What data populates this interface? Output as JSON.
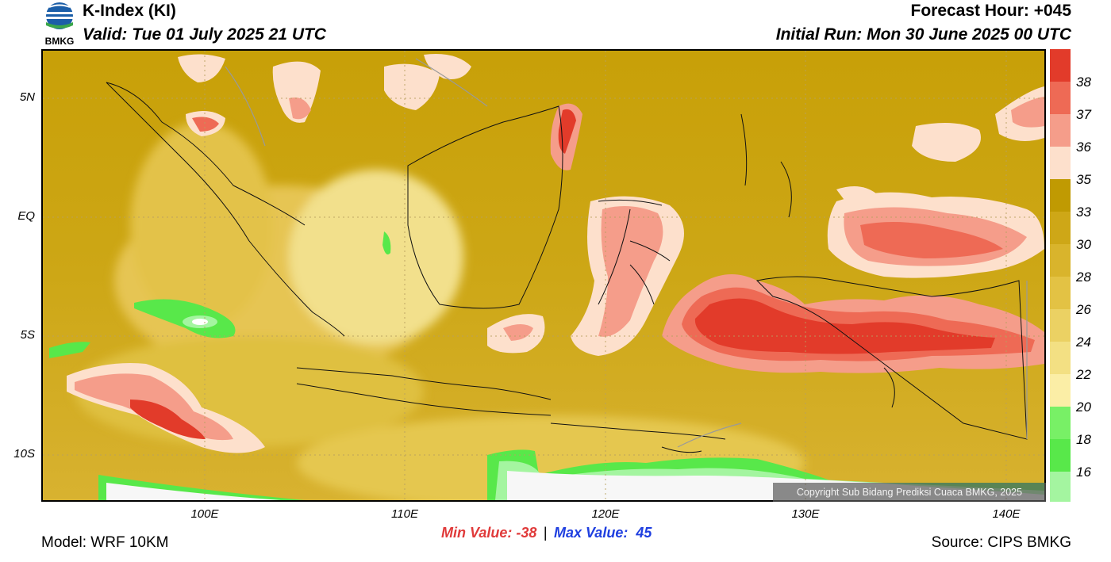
{
  "header": {
    "title": "K-Index (KI)",
    "valid": "Valid: Tue 01 July 2025 21 UTC",
    "forecast_hour": "Forecast Hour: +045",
    "initial_run": "Initial Run: Mon 30 June 2025 00 UTC"
  },
  "logo": {
    "text": "BMKG"
  },
  "axes": {
    "lat_labels": [
      "5N",
      "EQ",
      "5S",
      "10S"
    ],
    "lon_labels": [
      "100E",
      "110E",
      "120E",
      "130E",
      "140E"
    ]
  },
  "colorbar": {
    "labels": [
      "38",
      "37",
      "36",
      "35",
      "33",
      "30",
      "28",
      "26",
      "24",
      "22",
      "20",
      "18",
      "16"
    ],
    "colors": [
      "#e23b2a",
      "#ee6a55",
      "#f59d8a",
      "#fde0cc",
      "#c09a02",
      "#cea717",
      "#d9b42c",
      "#e3c244",
      "#ebd163",
      "#f3e083",
      "#fbeea6",
      "#78f066",
      "#58e84a",
      "#a4f5a0"
    ]
  },
  "stats": {
    "min_label": "Min Value: -38",
    "separator": "|",
    "max_label": "Max Value:  45"
  },
  "copyright": "Copyright Sub Bidang Prediksi Cuaca BMKG, 2025",
  "footer": {
    "model": "Model: WRF 10KM",
    "source": "Source: CIPS BMKG"
  }
}
